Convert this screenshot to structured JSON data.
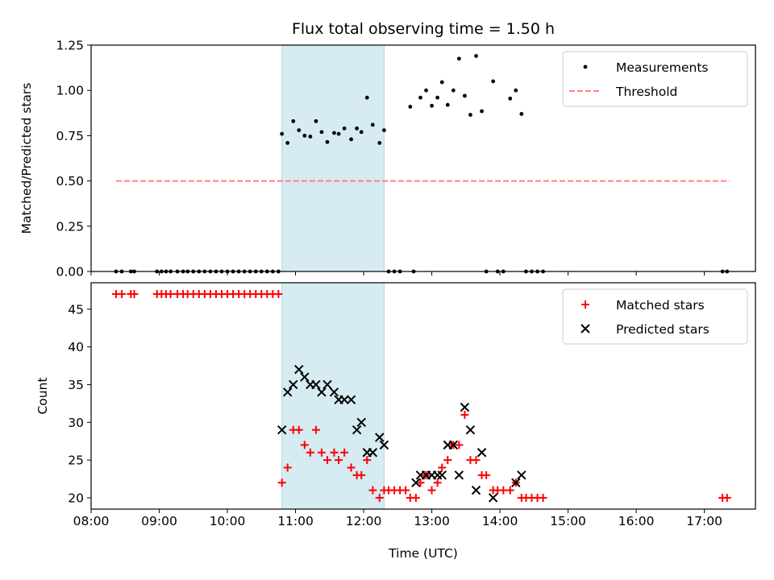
{
  "chart_data": [
    {
      "type": "scatter",
      "title": "Flux total observing time = 1.50 h",
      "ylabel": "Matched/Predicted stars",
      "xlabel": "",
      "xlim": [
        "08:00",
        "17:45"
      ],
      "ylim": [
        0,
        1.25
      ],
      "yticks": [
        "0.00",
        "0.25",
        "0.50",
        "0.75",
        "1.00",
        "1.25"
      ],
      "legend": {
        "position": "top-right",
        "entries": [
          "Measurements",
          "Threshold"
        ]
      },
      "highlight_span": [
        "10:48",
        "12:18"
      ],
      "threshold": {
        "name": "Threshold",
        "value": 0.5,
        "x": [
          "08:22",
          "17:22"
        ],
        "color": "#ff8080"
      },
      "series": [
        {
          "name": "Measurements",
          "color": "#000000",
          "points": [
            [
              "08:22",
              0
            ],
            [
              "08:27",
              0
            ],
            [
              "08:35",
              0
            ],
            [
              "08:38",
              0
            ],
            [
              "08:58",
              0
            ],
            [
              "09:02",
              0
            ],
            [
              "09:06",
              0
            ],
            [
              "09:10",
              0
            ],
            [
              "09:16",
              0
            ],
            [
              "09:21",
              0
            ],
            [
              "09:25",
              0
            ],
            [
              "09:30",
              0
            ],
            [
              "09:35",
              0
            ],
            [
              "09:40",
              0
            ],
            [
              "09:45",
              0
            ],
            [
              "09:50",
              0
            ],
            [
              "09:55",
              0
            ],
            [
              "10:00",
              0
            ],
            [
              "10:05",
              0
            ],
            [
              "10:10",
              0
            ],
            [
              "10:15",
              0
            ],
            [
              "10:20",
              0
            ],
            [
              "10:25",
              0
            ],
            [
              "10:30",
              0
            ],
            [
              "10:35",
              0
            ],
            [
              "10:40",
              0
            ],
            [
              "10:45",
              0
            ],
            [
              "10:48",
              0.76
            ],
            [
              "10:53",
              0.71
            ],
            [
              "10:58",
              0.83
            ],
            [
              "11:03",
              0.78
            ],
            [
              "11:08",
              0.75
            ],
            [
              "11:13",
              0.745
            ],
            [
              "11:18",
              0.83
            ],
            [
              "11:23",
              0.77
            ],
            [
              "11:28",
              0.715
            ],
            [
              "11:34",
              0.765
            ],
            [
              "11:38",
              0.76
            ],
            [
              "11:43",
              0.79
            ],
            [
              "11:49",
              0.73
            ],
            [
              "11:54",
              0.79
            ],
            [
              "11:58",
              0.77
            ],
            [
              "12:03",
              0.96
            ],
            [
              "12:08",
              0.81
            ],
            [
              "12:14",
              0.71
            ],
            [
              "12:18",
              0.78
            ],
            [
              "12:22",
              0
            ],
            [
              "12:27",
              0
            ],
            [
              "12:32",
              0
            ],
            [
              "12:41",
              0.91
            ],
            [
              "12:44",
              0
            ],
            [
              "12:50",
              0.96
            ],
            [
              "12:55",
              1.0
            ],
            [
              "13:00",
              0.915
            ],
            [
              "13:05",
              0.96
            ],
            [
              "13:09",
              1.045
            ],
            [
              "13:14",
              0.92
            ],
            [
              "13:19",
              1.0
            ],
            [
              "13:24",
              1.175
            ],
            [
              "13:29",
              0.97
            ],
            [
              "13:34",
              0.865
            ],
            [
              "13:39",
              1.19
            ],
            [
              "13:44",
              0.885
            ],
            [
              "13:48",
              0
            ],
            [
              "13:54",
              1.05
            ],
            [
              "13:58",
              0
            ],
            [
              "14:03",
              0
            ],
            [
              "14:09",
              0.955
            ],
            [
              "14:14",
              1.0
            ],
            [
              "14:19",
              0.87
            ],
            [
              "14:23",
              0
            ],
            [
              "14:28",
              0
            ],
            [
              "14:33",
              0
            ],
            [
              "14:38",
              0
            ],
            [
              "17:16",
              0
            ],
            [
              "17:20",
              0
            ]
          ]
        }
      ]
    },
    {
      "type": "scatter",
      "title": "",
      "ylabel": "Count",
      "xlabel": "Time (UTC)",
      "xlim": [
        "08:00",
        "17:45"
      ],
      "ylim": [
        18.5,
        48.5
      ],
      "yticks": [
        "20",
        "25",
        "30",
        "35",
        "40",
        "45"
      ],
      "xticks": [
        "08:00",
        "09:00",
        "10:00",
        "11:00",
        "12:00",
        "13:00",
        "14:00",
        "15:00",
        "16:00",
        "17:00"
      ],
      "legend": {
        "position": "top-right",
        "entries": [
          "Matched stars",
          "Predicted stars"
        ]
      },
      "highlight_span": [
        "10:48",
        "12:18"
      ],
      "series": [
        {
          "name": "Matched stars",
          "marker": "plus",
          "color": "#ff0000",
          "points": [
            [
              "08:22",
              47
            ],
            [
              "08:27",
              47
            ],
            [
              "08:35",
              47
            ],
            [
              "08:38",
              47
            ],
            [
              "08:58",
              47
            ],
            [
              "09:02",
              47
            ],
            [
              "09:06",
              47
            ],
            [
              "09:10",
              47
            ],
            [
              "09:16",
              47
            ],
            [
              "09:21",
              47
            ],
            [
              "09:25",
              47
            ],
            [
              "09:30",
              47
            ],
            [
              "09:35",
              47
            ],
            [
              "09:40",
              47
            ],
            [
              "09:45",
              47
            ],
            [
              "09:50",
              47
            ],
            [
              "09:55",
              47
            ],
            [
              "10:00",
              47
            ],
            [
              "10:05",
              47
            ],
            [
              "10:10",
              47
            ],
            [
              "10:15",
              47
            ],
            [
              "10:20",
              47
            ],
            [
              "10:25",
              47
            ],
            [
              "10:30",
              47
            ],
            [
              "10:35",
              47
            ],
            [
              "10:40",
              47
            ],
            [
              "10:45",
              47
            ],
            [
              "10:48",
              22
            ],
            [
              "10:53",
              24
            ],
            [
              "10:58",
              29
            ],
            [
              "11:03",
              29
            ],
            [
              "11:08",
              27
            ],
            [
              "11:13",
              26
            ],
            [
              "11:18",
              29
            ],
            [
              "11:23",
              26
            ],
            [
              "11:28",
              25
            ],
            [
              "11:34",
              26
            ],
            [
              "11:38",
              25
            ],
            [
              "11:43",
              26
            ],
            [
              "11:49",
              24
            ],
            [
              "11:54",
              23
            ],
            [
              "11:58",
              23
            ],
            [
              "12:03",
              25
            ],
            [
              "12:08",
              21
            ],
            [
              "12:14",
              20
            ],
            [
              "12:18",
              21
            ],
            [
              "12:22",
              21
            ],
            [
              "12:27",
              21
            ],
            [
              "12:32",
              21
            ],
            [
              "12:37",
              21
            ],
            [
              "12:41",
              20
            ],
            [
              "12:46",
              20
            ],
            [
              "12:50",
              22
            ],
            [
              "12:55",
              23
            ],
            [
              "13:00",
              21
            ],
            [
              "13:05",
              22
            ],
            [
              "13:09",
              24
            ],
            [
              "13:14",
              25
            ],
            [
              "13:19",
              27
            ],
            [
              "13:24",
              27
            ],
            [
              "13:29",
              31
            ],
            [
              "13:34",
              25
            ],
            [
              "13:39",
              25
            ],
            [
              "13:44",
              23
            ],
            [
              "13:48",
              23
            ],
            [
              "13:54",
              21
            ],
            [
              "13:58",
              21
            ],
            [
              "14:03",
              21
            ],
            [
              "14:09",
              21
            ],
            [
              "14:14",
              22
            ],
            [
              "14:19",
              20
            ],
            [
              "14:23",
              20
            ],
            [
              "14:28",
              20
            ],
            [
              "14:33",
              20
            ],
            [
              "14:38",
              20
            ],
            [
              "17:16",
              20
            ],
            [
              "17:20",
              20
            ]
          ]
        },
        {
          "name": "Predicted stars",
          "marker": "x",
          "color": "#000000",
          "points": [
            [
              "10:48",
              29
            ],
            [
              "10:53",
              34
            ],
            [
              "10:58",
              35
            ],
            [
              "11:03",
              37
            ],
            [
              "11:08",
              36
            ],
            [
              "11:13",
              35
            ],
            [
              "11:18",
              35
            ],
            [
              "11:23",
              34
            ],
            [
              "11:28",
              35
            ],
            [
              "11:34",
              34
            ],
            [
              "11:38",
              33
            ],
            [
              "11:43",
              33
            ],
            [
              "11:49",
              33
            ],
            [
              "11:54",
              29
            ],
            [
              "11:58",
              30
            ],
            [
              "12:03",
              26
            ],
            [
              "12:08",
              26
            ],
            [
              "12:14",
              28
            ],
            [
              "12:18",
              27
            ],
            [
              "12:46",
              22
            ],
            [
              "12:50",
              23
            ],
            [
              "12:55",
              23
            ],
            [
              "13:00",
              23
            ],
            [
              "13:05",
              23
            ],
            [
              "13:09",
              23
            ],
            [
              "13:14",
              27
            ],
            [
              "13:19",
              27
            ],
            [
              "13:24",
              23
            ],
            [
              "13:29",
              32
            ],
            [
              "13:34",
              29
            ],
            [
              "13:39",
              21
            ],
            [
              "13:44",
              26
            ],
            [
              "13:54",
              20
            ],
            [
              "14:14",
              22
            ],
            [
              "14:19",
              23
            ]
          ]
        }
      ]
    }
  ]
}
